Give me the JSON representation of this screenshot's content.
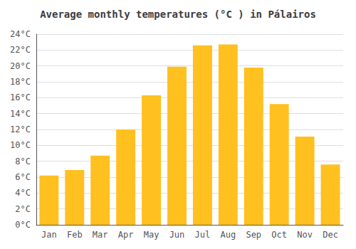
{
  "chart_data": {
    "type": "bar",
    "title": "Average monthly temperatures (°C ) in Pálairos",
    "categories": [
      "Jan",
      "Feb",
      "Mar",
      "Apr",
      "May",
      "Jun",
      "Jul",
      "Aug",
      "Sep",
      "Oct",
      "Nov",
      "Dec"
    ],
    "values": [
      6.2,
      6.9,
      8.7,
      12.0,
      16.3,
      19.9,
      22.6,
      22.7,
      19.8,
      15.2,
      11.1,
      7.6
    ],
    "color": "#FFC020",
    "ylim": [
      0,
      24
    ],
    "yticks": [
      {
        "value": 0,
        "label": "0°C"
      },
      {
        "value": 2,
        "label": "2°C"
      },
      {
        "value": 4,
        "label": "4°C"
      },
      {
        "value": 6,
        "label": "6°C"
      },
      {
        "value": 8,
        "label": "8°C"
      },
      {
        "value": 10,
        "label": "10°C"
      },
      {
        "value": 12,
        "label": "12°C"
      },
      {
        "value": 14,
        "label": "14°C"
      },
      {
        "value": 16,
        "label": "16°C"
      },
      {
        "value": 18,
        "label": "18°C"
      },
      {
        "value": 20,
        "label": "20°C"
      },
      {
        "value": 22,
        "label": "22°C"
      },
      {
        "value": 24,
        "label": "24°C"
      }
    ],
    "grid": true
  }
}
